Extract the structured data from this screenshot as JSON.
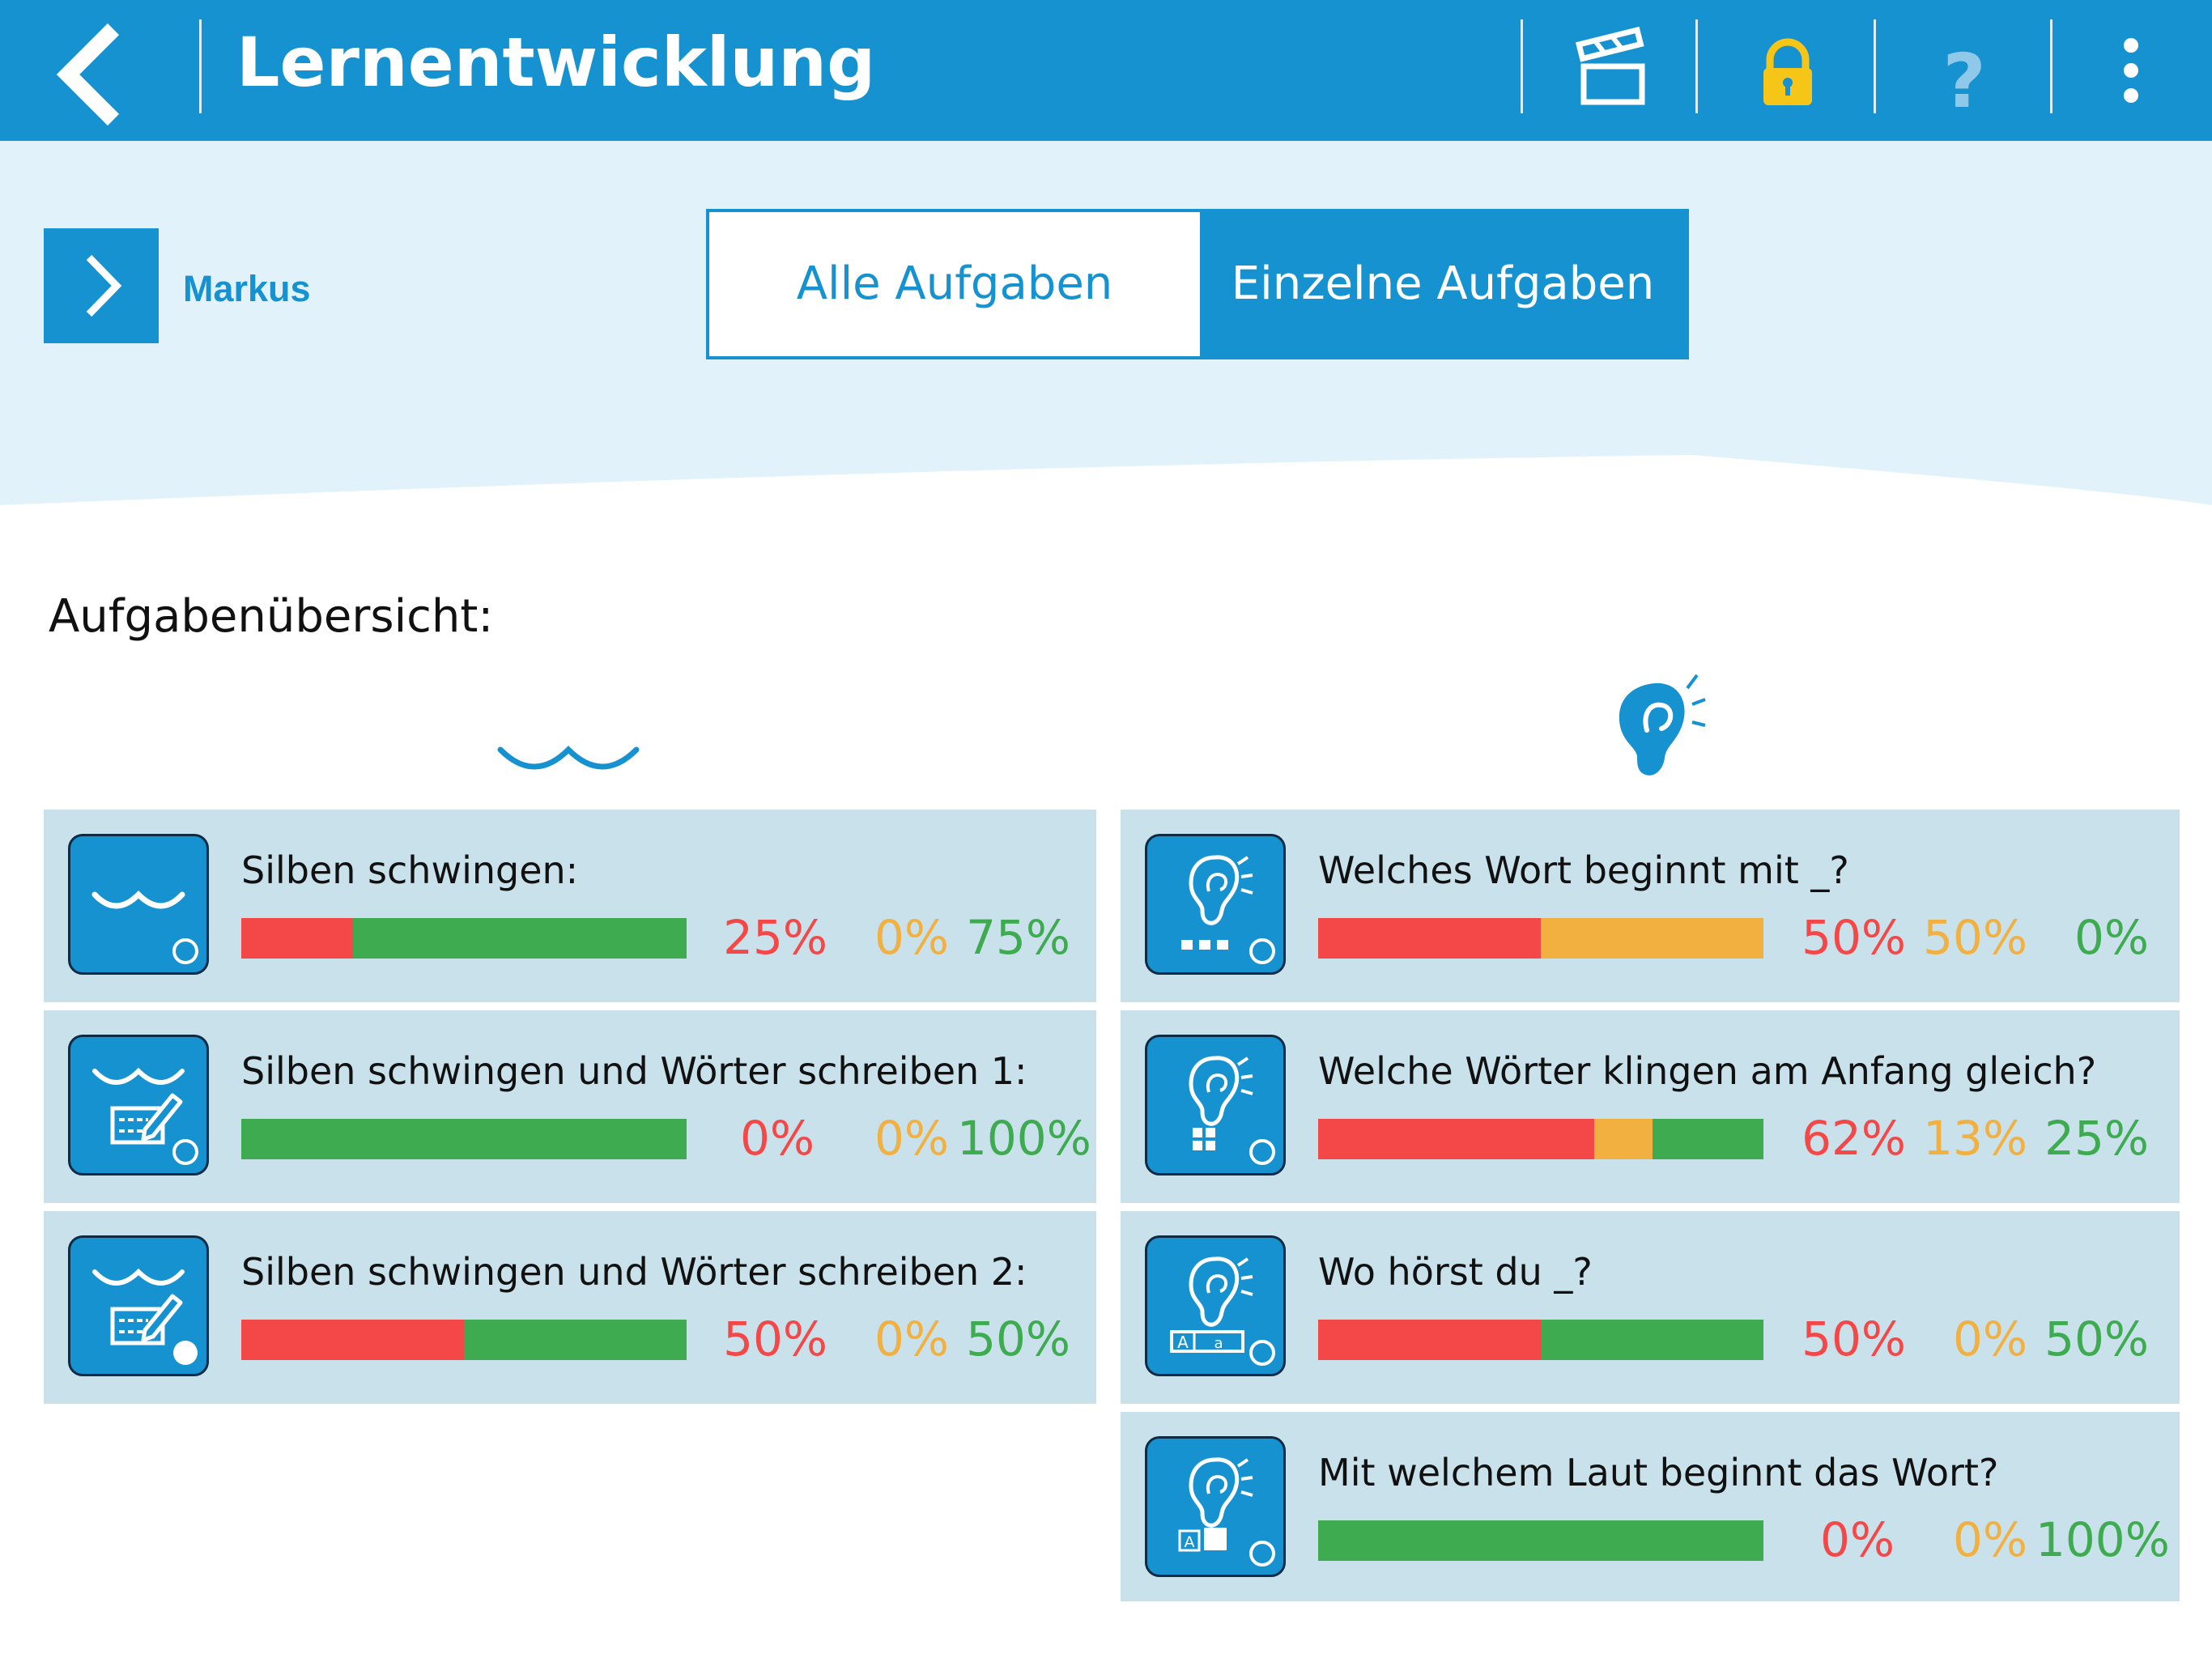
{
  "header": {
    "title": "Lernentwicklung"
  },
  "user": {
    "name": "Markus"
  },
  "tabs": [
    {
      "label": "Alle Aufgaben",
      "active": true
    },
    {
      "label": "Einzelne Aufgaben",
      "active": false
    }
  ],
  "section": {
    "title": "Aufgabenübersicht:"
  },
  "colors": {
    "primary": "#1592cf",
    "red": "#f44848",
    "orange": "#f2b040",
    "green": "#3eab50",
    "card": "#c8e1ea",
    "lock": "#f5c518"
  },
  "left_tasks": [
    {
      "title": "Silben schwingen:",
      "red": 25,
      "orange": 0,
      "green": 75,
      "red_label": "25%",
      "orange_label": "0%",
      "green_label": "75%",
      "icon": "syllable-swing-icon",
      "status": "open"
    },
    {
      "title": "Silben schwingen und Wörter schreiben 1:",
      "red": 0,
      "orange": 0,
      "green": 100,
      "red_label": "0%",
      "orange_label": "0%",
      "green_label": "100%",
      "icon": "syllable-write-icon",
      "status": "open"
    },
    {
      "title": "Silben schwingen und Wörter schreiben 2:",
      "red": 50,
      "orange": 0,
      "green": 50,
      "red_label": "50%",
      "orange_label": "0%",
      "green_label": "50%",
      "icon": "syllable-write-icon",
      "status": "done"
    }
  ],
  "right_tasks": [
    {
      "title": "Welches Wort beginnt mit _?",
      "red": 50,
      "orange": 50,
      "green": 0,
      "red_label": "50%",
      "orange_label": "50%",
      "green_label": "0%",
      "icon": "ear-dots-icon",
      "status": "open"
    },
    {
      "title": "Welche Wörter klingen am Anfang gleich?",
      "red": 62,
      "orange": 13,
      "green": 25,
      "red_label": "62%",
      "orange_label": "13%",
      "green_label": "25%",
      "icon": "ear-grid-icon",
      "status": "open"
    },
    {
      "title": "Wo hörst du _?",
      "red": 50,
      "orange": 0,
      "green": 50,
      "red_label": "50%",
      "orange_label": "0%",
      "green_label": "50%",
      "icon": "ear-letter-box-icon",
      "status": "open"
    },
    {
      "title": "Mit welchem Laut beginnt das Wort?",
      "red": 0,
      "orange": 0,
      "green": 100,
      "red_label": "0%",
      "orange_label": "0%",
      "green_label": "100%",
      "icon": "ear-letter-square-icon",
      "status": "open"
    }
  ]
}
